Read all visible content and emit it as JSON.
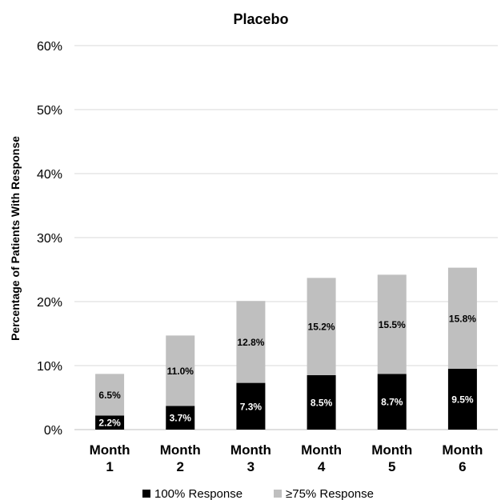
{
  "chart_data": {
    "type": "bar",
    "stacked": true,
    "title": "Placebo",
    "ylabel": "Percentage of Patients With Response",
    "xlabel": "",
    "ylim": [
      0,
      60
    ],
    "yticks": [
      0,
      10,
      20,
      30,
      40,
      50,
      60
    ],
    "ytick_suffix": "%",
    "grid": true,
    "legend_position": "bottom",
    "categories": [
      {
        "line1": "Month",
        "line2": "1"
      },
      {
        "line1": "Month",
        "line2": "2"
      },
      {
        "line1": "Month",
        "line2": "3"
      },
      {
        "line1": "Month",
        "line2": "4"
      },
      {
        "line1": "Month",
        "line2": "5"
      },
      {
        "line1": "Month",
        "line2": "6"
      }
    ],
    "series": [
      {
        "name": "100% Response",
        "color": "#000000",
        "label_color": "#ffffff",
        "values": [
          2.2,
          3.7,
          7.3,
          8.5,
          8.7,
          9.5
        ]
      },
      {
        "name": "≥75% Response",
        "color": "#bfbfbf",
        "label_color": "#000000",
        "values": [
          6.5,
          11.0,
          12.8,
          15.2,
          15.5,
          15.8
        ]
      }
    ]
  }
}
